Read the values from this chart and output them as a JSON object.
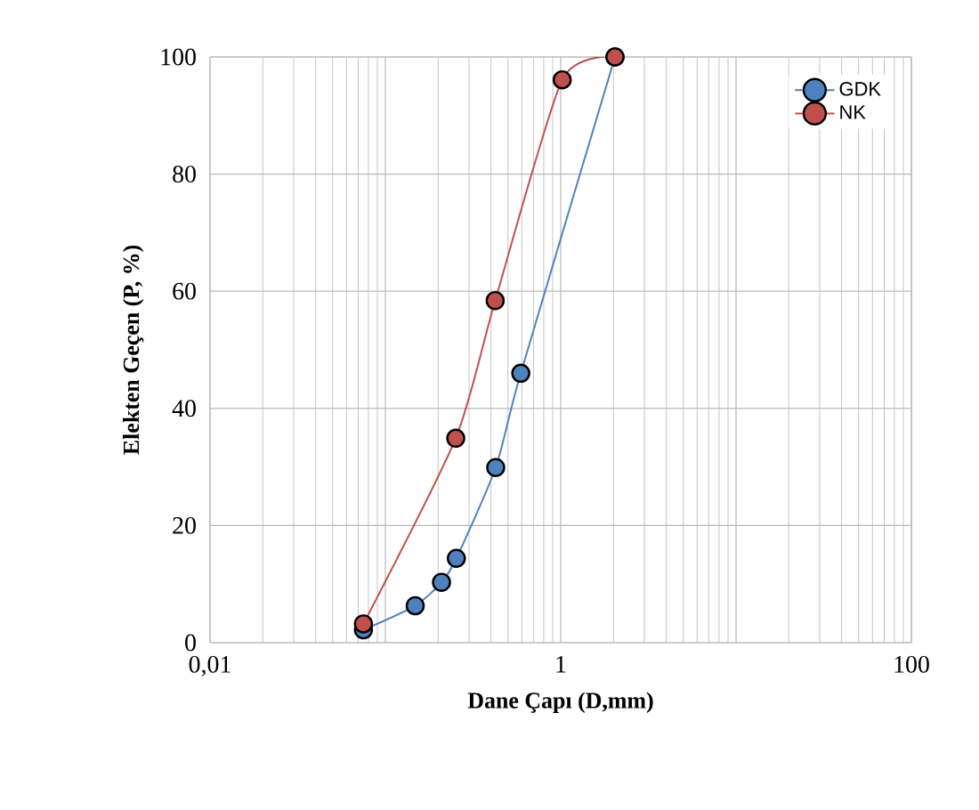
{
  "chart_data": {
    "type": "line",
    "xlabel": "Dane Çapı (D,mm)",
    "ylabel": "Elekten Geçen (P, %)",
    "log": "x",
    "grid": true,
    "legend": "top right",
    "marker": "circle",
    "line_style": "solid",
    "xlim": [
      0.01,
      100
    ],
    "xticks": [
      {
        "value": 0.01,
        "label": "0,01"
      },
      {
        "value": 0.1,
        "label": null
      },
      {
        "value": 1,
        "label": "1"
      },
      {
        "value": 10,
        "label": null
      },
      {
        "value": 100,
        "label": "100"
      }
    ],
    "ylim": [
      0,
      100
    ],
    "yticks": [
      0,
      20,
      40,
      60,
      80,
      100
    ],
    "series": [
      {
        "name": "GDK",
        "color": "#4f81bd",
        "x": [
          0.075,
          0.148,
          0.209,
          0.254,
          0.426,
          0.592,
          2.04
        ],
        "values": [
          2.2,
          6.3,
          10.3,
          14.4,
          29.9,
          46,
          100
        ]
      },
      {
        "name": "NK",
        "color": "#c0504d",
        "x": [
          0.075,
          0.252,
          0.423,
          1.02,
          2.04
        ],
        "values": [
          3.2,
          34.9,
          58.4,
          96.1,
          100
        ]
      }
    ]
  }
}
